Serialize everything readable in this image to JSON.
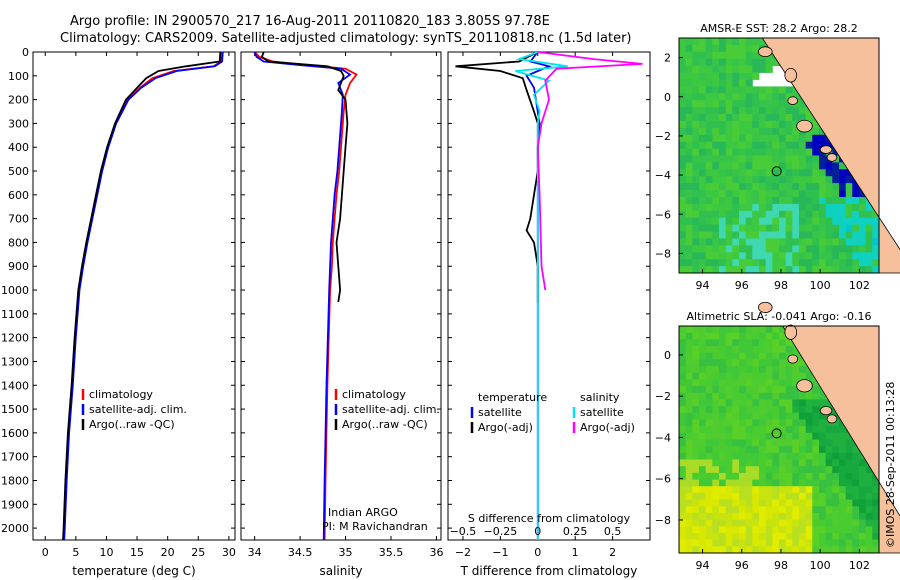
{
  "header": {
    "line1": "Argo profile: IN 2900570_217 16-Aug-2011 20110820_183 3.805S 97.78E",
    "line2": "Climatology: CARS2009. Satellite-adjusted climatology: synTS_20110818.nc (1.5d later)"
  },
  "footer": {
    "credit": "©IMOS 28-Sep-2011 00:13:28",
    "float_note_1": "Indian ARGO",
    "float_note_2": "PI: M Ravichandran"
  },
  "colors": {
    "climatology": "#ff0000",
    "satellite": "#0000ff",
    "argo": "#000000",
    "sal_satellite": "#00e5ee",
    "sal_argo": "#ff00ff",
    "land": "#f5c09b"
  },
  "chart_data": [
    {
      "type": "line",
      "xlabel": "temperature (deg C)",
      "xlim": [
        -2,
        31
      ],
      "ylim": [
        0,
        2050
      ],
      "ytick_step": 100,
      "xticks": [
        0,
        5,
        10,
        15,
        20,
        25,
        30
      ],
      "legend": [
        "climatology",
        "satellite-adj. clim.",
        "Argo(..raw -QC)"
      ],
      "series": [
        {
          "name": "climatology",
          "color": "#ff0000",
          "points": [
            [
              28.8,
              0
            ],
            [
              28.7,
              40
            ],
            [
              27.5,
              60
            ],
            [
              21,
              80
            ],
            [
              17.5,
              110
            ],
            [
              15.5,
              150
            ],
            [
              13.5,
              200
            ],
            [
              11.5,
              300
            ],
            [
              10.2,
              400
            ],
            [
              9.2,
              500
            ],
            [
              8.4,
              600
            ],
            [
              7.6,
              700
            ],
            [
              6.8,
              800
            ],
            [
              6.1,
              900
            ],
            [
              5.5,
              1000
            ],
            [
              4.9,
              1200
            ],
            [
              4.4,
              1400
            ],
            [
              3.8,
              1600
            ],
            [
              3.4,
              1800
            ],
            [
              3.1,
              2000
            ],
            [
              3.0,
              2050
            ]
          ]
        },
        {
          "name": "satellite-adj. clim.",
          "color": "#0000ff",
          "points": [
            [
              29.0,
              0
            ],
            [
              28.9,
              40
            ],
            [
              27.7,
              60
            ],
            [
              21.5,
              80
            ],
            [
              18,
              110
            ],
            [
              15.7,
              150
            ],
            [
              13.6,
              200
            ],
            [
              11.6,
              300
            ],
            [
              10.3,
              400
            ],
            [
              9.3,
              500
            ],
            [
              8.5,
              600
            ],
            [
              7.7,
              700
            ],
            [
              6.9,
              800
            ],
            [
              6.2,
              900
            ],
            [
              5.6,
              1000
            ],
            [
              5.0,
              1200
            ],
            [
              4.5,
              1400
            ],
            [
              3.9,
              1600
            ],
            [
              3.5,
              1800
            ],
            [
              3.2,
              2000
            ],
            [
              3.1,
              2050
            ]
          ]
        },
        {
          "name": "Argo(..raw -QC)",
          "color": "#000000",
          "points": [
            [
              28.6,
              0
            ],
            [
              28.5,
              40
            ],
            [
              23,
              60
            ],
            [
              18.5,
              80
            ],
            [
              16.5,
              110
            ],
            [
              15,
              150
            ],
            [
              13.2,
              200
            ],
            [
              11.4,
              300
            ],
            [
              10.1,
              400
            ],
            [
              9.1,
              500
            ],
            [
              8.3,
              600
            ],
            [
              7.5,
              700
            ],
            [
              6.7,
              800
            ],
            [
              6.0,
              900
            ],
            [
              5.4,
              1000
            ],
            [
              4.8,
              1200
            ],
            [
              4.3,
              1400
            ],
            [
              3.7,
              1600
            ],
            [
              3.3,
              1800
            ],
            [
              3.0,
              2000
            ],
            [
              2.9,
              2050
            ]
          ]
        }
      ]
    },
    {
      "type": "line",
      "xlabel": "salinity",
      "xlim": [
        33.85,
        36.05
      ],
      "ylim": [
        0,
        2050
      ],
      "xticks": [
        34,
        34.5,
        35,
        35.5,
        36
      ],
      "legend": [
        "climatology",
        "satellite-adj. clim.",
        "Argo(..raw -QC)"
      ],
      "series": [
        {
          "name": "climatology",
          "color": "#ff0000",
          "points": [
            [
              34.0,
              0
            ],
            [
              34.05,
              20
            ],
            [
              34.2,
              40
            ],
            [
              34.6,
              55
            ],
            [
              35.0,
              70
            ],
            [
              35.12,
              95
            ],
            [
              35.05,
              130
            ],
            [
              35.0,
              180
            ],
            [
              34.98,
              250
            ],
            [
              34.97,
              300
            ],
            [
              34.95,
              400
            ],
            [
              34.93,
              500
            ],
            [
              34.9,
              600
            ],
            [
              34.88,
              700
            ],
            [
              34.86,
              800
            ],
            [
              34.85,
              900
            ],
            [
              34.83,
              1000
            ],
            [
              34.8,
              1400
            ],
            [
              34.78,
              1800
            ],
            [
              34.77,
              2050
            ]
          ]
        },
        {
          "name": "satellite-adj. clim.",
          "color": "#0000ff",
          "points": [
            [
              34.0,
              0
            ],
            [
              34.02,
              20
            ],
            [
              34.1,
              40
            ],
            [
              34.5,
              55
            ],
            [
              34.95,
              70
            ],
            [
              35.05,
              95
            ],
            [
              34.92,
              130
            ],
            [
              34.97,
              180
            ],
            [
              34.96,
              250
            ],
            [
              34.95,
              300
            ],
            [
              34.93,
              400
            ],
            [
              34.91,
              500
            ],
            [
              34.88,
              600
            ],
            [
              34.86,
              700
            ],
            [
              34.84,
              800
            ],
            [
              34.83,
              900
            ],
            [
              34.82,
              1000
            ],
            [
              34.79,
              1400
            ],
            [
              34.77,
              1800
            ],
            [
              34.76,
              2050
            ]
          ]
        },
        {
          "name": "Argo(..raw -QC)",
          "color": "#000000",
          "points": [
            [
              34.1,
              0
            ],
            [
              34.08,
              20
            ],
            [
              34.15,
              40
            ],
            [
              34.8,
              60
            ],
            [
              34.95,
              80
            ],
            [
              34.98,
              100
            ],
            [
              34.92,
              160
            ],
            [
              35.0,
              200
            ],
            [
              35.02,
              300
            ],
            [
              35.0,
              400
            ],
            [
              34.98,
              500
            ],
            [
              34.96,
              600
            ],
            [
              34.94,
              700
            ],
            [
              34.9,
              800
            ],
            [
              34.92,
              900
            ],
            [
              34.94,
              1000
            ],
            [
              34.92,
              1050
            ]
          ]
        }
      ]
    },
    {
      "type": "line",
      "xlabel": "T difference from climatology",
      "xlabel_top": "S difference from climatology",
      "xlim": [
        -2.4,
        3.0
      ],
      "ylim": [
        0,
        2050
      ],
      "xticks": [
        -2,
        -1,
        0,
        1,
        2
      ],
      "xticks_top": [
        -0.5,
        -0.25,
        0,
        0.25,
        0.5
      ],
      "legend_groups": [
        {
          "heading": "temperature",
          "items": [
            "satellite",
            "Argo(-adj)"
          ]
        },
        {
          "heading": "salinity",
          "items": [
            "satellite",
            "Argo(-adj)"
          ]
        }
      ],
      "series": [
        {
          "name": "satellite",
          "group": "temperature",
          "color": "#0000ff",
          "points": [
            [
              0,
              0
            ],
            [
              -0.2,
              40
            ],
            [
              0.3,
              60
            ],
            [
              -0.3,
              100
            ],
            [
              -0.1,
              150
            ],
            [
              -0.05,
              200
            ],
            [
              0.05,
              300
            ],
            [
              0,
              400
            ],
            [
              0,
              600
            ],
            [
              0,
              2050
            ]
          ]
        },
        {
          "name": "Argo(-adj)",
          "group": "temperature",
          "color": "#000000",
          "points": [
            [
              0,
              0
            ],
            [
              -0.5,
              40
            ],
            [
              -2.2,
              60
            ],
            [
              -1.0,
              80
            ],
            [
              -0.4,
              110
            ],
            [
              -0.3,
              160
            ],
            [
              -0.1,
              250
            ],
            [
              0,
              300
            ],
            [
              0,
              500
            ],
            [
              -0.1,
              600
            ],
            [
              -0.2,
              700
            ],
            [
              -0.3,
              750
            ],
            [
              -0.1,
              800
            ],
            [
              0,
              900
            ],
            [
              0,
              1050
            ]
          ]
        },
        {
          "name": "satellite",
          "group": "salinity",
          "color": "#00e5ee",
          "points": [
            [
              0,
              0
            ],
            [
              -0.5,
              30
            ],
            [
              0.8,
              60
            ],
            [
              -0.6,
              80
            ],
            [
              0.3,
              120
            ],
            [
              -0.1,
              180
            ],
            [
              0.05,
              250
            ],
            [
              0,
              300
            ],
            [
              0,
              600
            ],
            [
              0,
              2050
            ]
          ]
        },
        {
          "name": "Argo(-adj)",
          "group": "salinity",
          "color": "#ff00ff",
          "points": [
            [
              0,
              0
            ],
            [
              1.5,
              30
            ],
            [
              2.8,
              50
            ],
            [
              0.5,
              70
            ],
            [
              0.2,
              120
            ],
            [
              0.3,
              200
            ],
            [
              0.1,
              300
            ],
            [
              0,
              400
            ],
            [
              0.05,
              600
            ],
            [
              0.1,
              900
            ],
            [
              0.2,
              1000
            ]
          ]
        }
      ]
    },
    {
      "type": "heatmap",
      "title": "AMSR-E SST: 28.2  Argo: 28.2",
      "xlim": [
        92.8,
        103
      ],
      "ylim": [
        -9,
        3
      ],
      "xticks": [
        94,
        96,
        98,
        100,
        102
      ],
      "yticks": [
        -8,
        -6,
        -4,
        -2,
        0,
        2
      ],
      "marker": [
        97.78,
        -3.805
      ]
    },
    {
      "type": "heatmap",
      "title": "Altimetric SLA: -0.041  Argo: -0.16",
      "xlim": [
        92.8,
        103
      ],
      "ylim": [
        -9.6,
        1.4
      ],
      "xticks": [
        94,
        96,
        98,
        100,
        102
      ],
      "yticks": [
        -8,
        -6,
        -4,
        -2,
        0,
        2
      ],
      "marker": [
        97.78,
        -3.805
      ]
    }
  ]
}
